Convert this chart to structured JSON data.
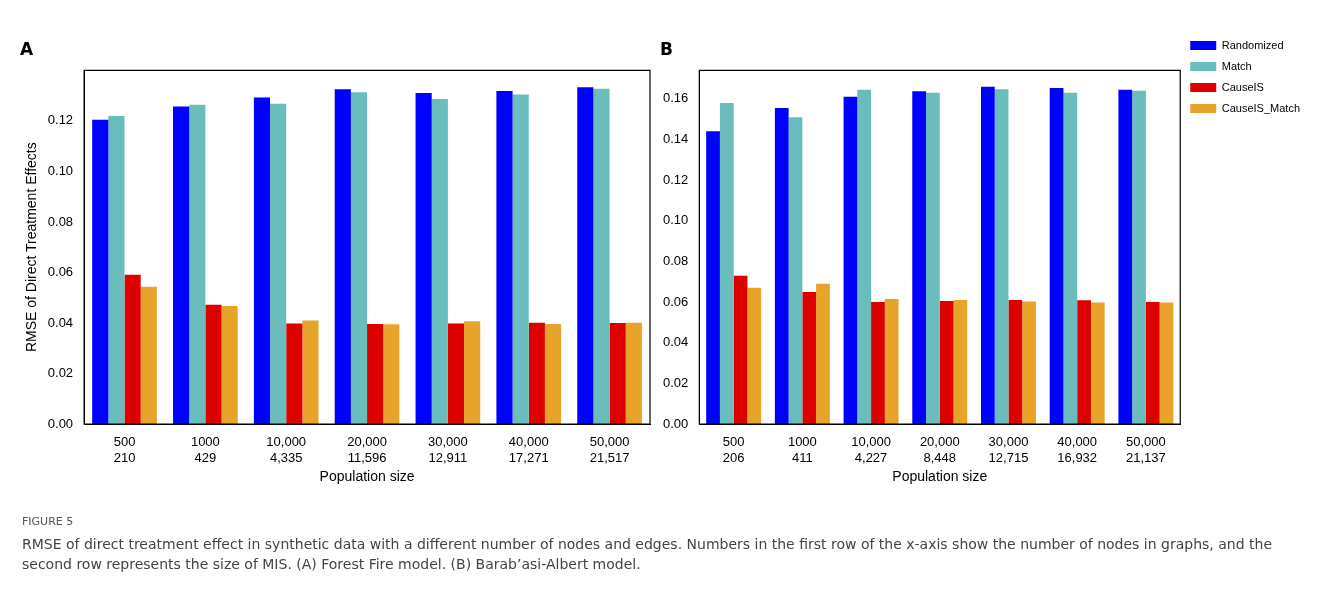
{
  "chart_data": [
    {
      "type": "bar",
      "title": "A",
      "xlabel": "Population size",
      "ylabel": "RMSE of Direct Treatment Effects",
      "categories": [
        "500\n210",
        "1000\n429",
        "10,000\n4,335",
        "20,000\n11,596",
        "30,000\n12,911",
        "40,000\n17,271",
        "50,000\n21,517"
      ],
      "series": [
        {
          "color": "#0000ff",
          "values": [
            0.1205,
            0.1257,
            0.1293,
            0.1325,
            0.1311,
            0.1318,
            0.1333
          ]
        },
        {
          "color": "#6bbcbc",
          "values": [
            0.1219,
            0.1264,
            0.1268,
            0.1313,
            0.1287,
            0.1305,
            0.1327
          ]
        },
        {
          "color": "#dd0000",
          "values": [
            0.0591,
            0.0472,
            0.0398,
            0.0396,
            0.0398,
            0.0401,
            0.04
          ]
        },
        {
          "color": "#e8a42a",
          "values": [
            0.0543,
            0.0467,
            0.041,
            0.0395,
            0.0407,
            0.0396,
            0.0401
          ]
        }
      ],
      "ylim": [
        0,
        0.14
      ],
      "yticks": [
        {
          "value": 0,
          "label": "0.00"
        },
        {
          "value": 0.02,
          "label": "0.02"
        },
        {
          "value": 0.04,
          "label": "0.04"
        },
        {
          "value": 0.06,
          "label": "0.06"
        },
        {
          "value": 0.08,
          "label": "0.08"
        },
        {
          "value": 0.1,
          "label": "0.10"
        },
        {
          "value": 0.12,
          "label": "0.12"
        }
      ],
      "grid": false,
      "legend": false,
      "annotations": [
        "FIGURE 5",
        "RMSE of direct treatment effect in synthetic data with a different number of nodes and edges. Numbers in the first row of the x-axis show the number of nodes in graphs, and the second row represents the size of MIS. (A) Forest Fire model. (B) Barab’asi-Albert model."
      ]
    },
    {
      "type": "bar",
      "title": "B",
      "xlabel": "Population size",
      "categories": [
        "500\n206",
        "1000\n411",
        "10,000\n4,227",
        "20,000\n8,448",
        "30,000\n12,715",
        "40,000\n16,932",
        "50,000\n21,137"
      ],
      "series": [
        {
          "name": "Randomized",
          "color": "#0000ff",
          "values": [
            0.144,
            0.1555,
            0.161,
            0.1638,
            0.166,
            0.1653,
            0.1645
          ]
        },
        {
          "name": "Match",
          "color": "#6bbcbc",
          "values": [
            0.158,
            0.151,
            0.1645,
            0.163,
            0.1647,
            0.163,
            0.164
          ]
        },
        {
          "name": "CauseIS",
          "color": "#dd0000",
          "values": [
            0.073,
            0.065,
            0.06,
            0.0605,
            0.061,
            0.0609,
            0.06
          ]
        },
        {
          "name": "CauseIS_Match",
          "color": "#e8a42a",
          "values": [
            0.067,
            0.069,
            0.0615,
            0.061,
            0.0603,
            0.0598,
            0.0598
          ]
        }
      ],
      "ylim": [
        0,
        0.174
      ],
      "yticks": [
        {
          "value": 0,
          "label": "0.00"
        },
        {
          "value": 0.02,
          "label": "0.02"
        },
        {
          "value": 0.04,
          "label": "0.04"
        },
        {
          "value": 0.06,
          "label": "0.06"
        },
        {
          "value": 0.08,
          "label": "0.08"
        },
        {
          "value": 0.1,
          "label": "0.10"
        },
        {
          "value": 0.12,
          "label": "0.12"
        },
        {
          "value": 0.14,
          "label": "0.14"
        },
        {
          "value": 0.16,
          "label": "0.16"
        }
      ],
      "grid": false,
      "legend": "top right"
    }
  ]
}
